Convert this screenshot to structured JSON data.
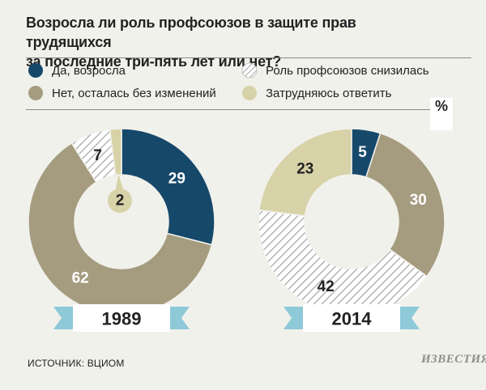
{
  "title_line1": "Возросла ли роль профсоюзов в защите прав трудящихся",
  "title_line2": "за последние три-пять лет или нет?",
  "unit": "%",
  "source": "ИСТОЧНИК: ВЦИОМ",
  "logo": "ИЗВЕСТИЯ",
  "legend": [
    {
      "label": "Да, возросла",
      "color": "#16486a",
      "pattern": "solid"
    },
    {
      "label": "Роль профсоюзов снизилась",
      "color": "#ffffff",
      "pattern": "hatch"
    },
    {
      "label": "Нет, осталась без изменений",
      "color": "#a59c7f",
      "pattern": "solid"
    },
    {
      "label": "Затрудняюсь ответить",
      "color": "#d8d2a8",
      "pattern": "solid"
    }
  ],
  "chart_data": [
    {
      "type": "pie",
      "title": "1989",
      "donut": true,
      "categories": [
        "Да, возросла",
        "Нет, осталась без изменений",
        "Роль профсоюзов снизилась",
        "Затрудняюсь ответить"
      ],
      "values": [
        29,
        62,
        7,
        2
      ],
      "labels": [
        "29",
        "62",
        "7",
        "2"
      ]
    },
    {
      "type": "pie",
      "title": "2014",
      "donut": true,
      "categories": [
        "Да, возросла",
        "Нет, осталась без изменений",
        "Роль профсоюзов снизилась",
        "Затрудняюсь ответить"
      ],
      "values": [
        5,
        30,
        42,
        23
      ],
      "labels": [
        "5",
        "30",
        "42",
        "23"
      ]
    }
  ],
  "colors": {
    "increased": "#16486a",
    "unchanged": "#a59c7f",
    "decreased_hatch_bg": "#ffffff",
    "decreased_hatch_line": "#a3a3a3",
    "undecided": "#d8d2a8",
    "ribbon": "#8ec9d8",
    "background": "#f1f1ec"
  }
}
